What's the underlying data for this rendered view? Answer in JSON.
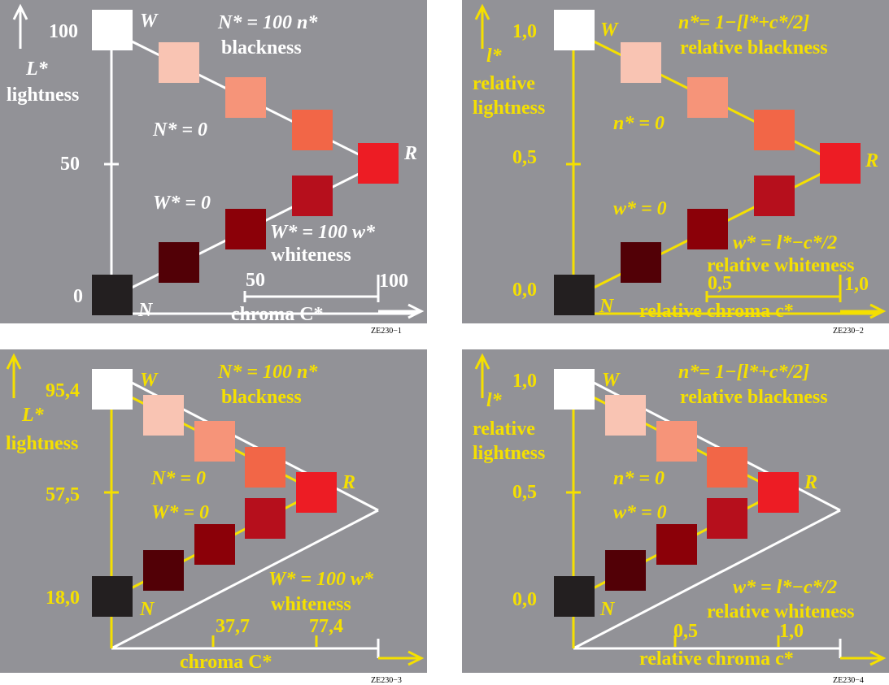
{
  "palette": {
    "panel_bg": "#929297",
    "white_axis": "#ffffff",
    "yellow_axis": "#f5e000",
    "W": "#ffffff",
    "N": "#231f20",
    "reds_upper": [
      "#f9c4b3",
      "#f69479",
      "#f26647"
    ],
    "R": "#ed1c24",
    "reds_lower": [
      "#b60f1c",
      "#8b0008",
      "#520006"
    ]
  },
  "panels": [
    {
      "code": "ZE230−1",
      "y_label_1": "L*",
      "y_label_2": "lightness",
      "y_label_3": "",
      "y_ticks": [
        "100",
        "50",
        "0"
      ],
      "x_label": "chroma C*",
      "x_ticks": [
        "50",
        "100"
      ],
      "corner_W": "W",
      "corner_N": "N",
      "corner_R": "R",
      "black_eq": "N* = 100 n*",
      "black_word": "blackness",
      "black_zero": "N* = 0",
      "white_eq": "W* = 100 w*",
      "white_word": "whiteness",
      "white_zero": "W* = 0"
    },
    {
      "code": "ZE230−2",
      "y_label_1": "l*",
      "y_label_2": "relative",
      "y_label_3": "lightness",
      "y_ticks": [
        "1,0",
        "0,5",
        "0,0"
      ],
      "x_label": "relative chroma c*",
      "x_ticks": [
        "0,5",
        "1,0"
      ],
      "corner_W": "W",
      "corner_N": "N",
      "corner_R": "R",
      "black_eq": "n*= 1−[l*+c*/2]",
      "black_word": "relative blackness",
      "black_zero": "n* = 0",
      "white_eq": "w* = l*−c*/2",
      "white_word": "relative whiteness",
      "white_zero": "w* = 0"
    },
    {
      "code": "ZE230−3",
      "y_label_1": "L*",
      "y_label_2": "lightness",
      "y_label_3": "",
      "y_ticks": [
        "95,4",
        "57,5",
        "18,0"
      ],
      "x_label": "chroma C*",
      "x_ticks": [
        "37,7",
        "77,4"
      ],
      "corner_W": "W",
      "corner_N": "N",
      "corner_R": "R",
      "black_eq": "N* = 100 n*",
      "black_word": "blackness",
      "black_zero": "N* = 0",
      "white_eq": "W* = 100 w*",
      "white_word": "whiteness",
      "white_zero": "W* = 0"
    },
    {
      "code": "ZE230−4",
      "y_label_1": "l*",
      "y_label_2": "relative",
      "y_label_3": "lightness",
      "y_ticks": [
        "1,0",
        "0,5",
        "0,0"
      ],
      "x_label": "relative chroma c*",
      "x_ticks": [
        "0,5",
        "1,0"
      ],
      "corner_W": "W",
      "corner_N": "N",
      "corner_R": "R",
      "black_eq": "n*= 1−[l*+c*/2]",
      "black_word": "relative blackness",
      "black_zero": "n* = 0",
      "white_eq": "w* = l*−c*/2",
      "white_word": "relative whiteness",
      "white_zero": "w* = 0"
    }
  ]
}
